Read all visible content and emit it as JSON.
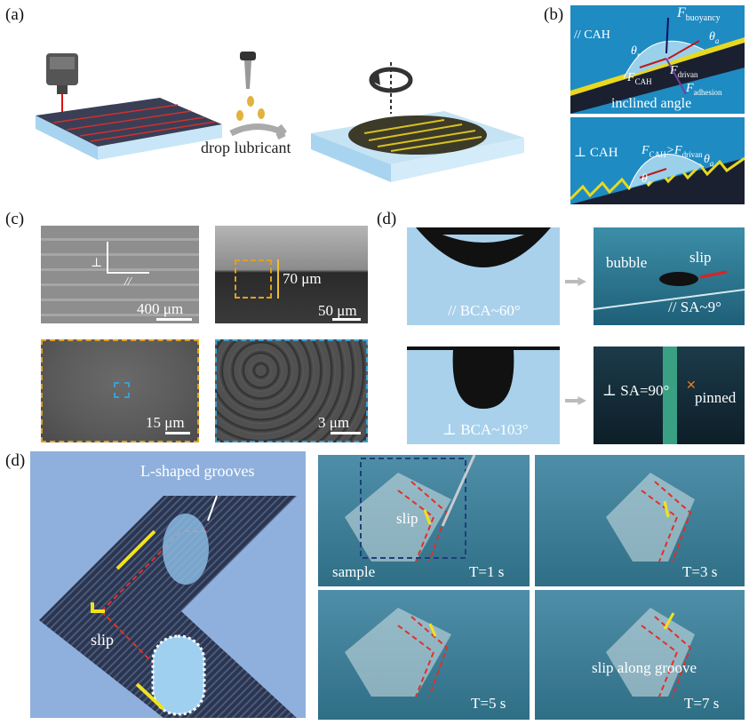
{
  "panel_labels": {
    "a": "(a)",
    "b": "(b)",
    "c": "(c)",
    "d_top": "(d)",
    "d_bottom": "(d)"
  },
  "panel_a": {
    "caption": "drop lubricant"
  },
  "panel_b": {
    "top": {
      "side": "// CAH",
      "f_buoyancy": "F",
      "f_buoyancy_sub": "buoyancy",
      "theta_a": "θ",
      "theta_a_sub": "a",
      "theta_r": "θ",
      "theta_r_sub": "r",
      "f_cah": "F",
      "f_cah_sub": "CAH",
      "f_drivan": "F",
      "f_drivan_sub": "drivan",
      "f_adhesion": "F",
      "f_adhesion_sub": "adhesion",
      "caption": "inclined angle"
    },
    "bottom": {
      "side": "⊥ CAH",
      "f_cah": "F",
      "f_cah_sub": "CAH",
      "gt": ">",
      "f_drivan": "F",
      "f_drivan_sub": "drivan",
      "theta_r": "θ",
      "theta_r_sub": "r",
      "theta_a": "θ",
      "theta_a_sub": "a"
    }
  },
  "panel_c": {
    "perp": "⊥",
    "para": "//",
    "sb1": "400 μm",
    "sb2": "50 μm",
    "depth": "70 μm",
    "sb3": "15 μm",
    "sb4": "3 μm"
  },
  "panel_d_top": {
    "bca_para": "// BCA~60°",
    "bca_perp": "⊥ BCA~103°",
    "bubble": "bubble",
    "slip": "slip",
    "sa_para": "// SA~9°",
    "sa_perp": "⊥ SA=90°",
    "pinned": "pinned",
    "x_mark": "✕"
  },
  "panel_d_bottom": {
    "grooves": "L-shaped grooves",
    "slip": "slip",
    "slip_photo": "slip",
    "sample": "sample",
    "t1": "T=1 s",
    "t3": "T=3 s",
    "t5": "T=5 s",
    "t7": "T=7 s",
    "slip_along": "slip along groove"
  },
  "colors": {
    "water": "#a9d1ec",
    "groove_dark": "#2b3550",
    "yellow": "#f2e21c",
    "red": "#e0302a",
    "bg_blue": "#8fb0dc"
  }
}
